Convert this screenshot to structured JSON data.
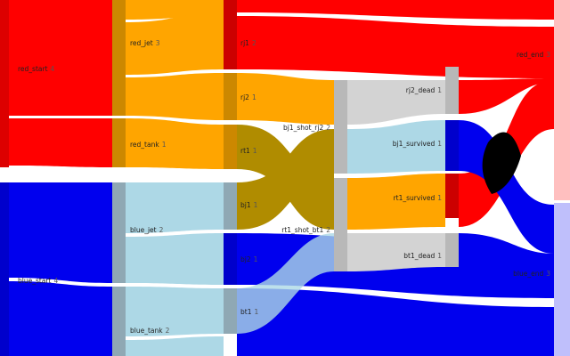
{
  "diagram": {
    "type": "sankey",
    "colors": {
      "red": "#ff0000",
      "blue": "#0000ee",
      "orange": "#ffa500",
      "lightblue": "#add8e6",
      "lightgray": "#d3d3d3",
      "darkgold": "#b08c00",
      "black": "#000000",
      "gray": "#bbbbbb"
    },
    "nodes": [
      {
        "id": "red_start",
        "label": "red_start",
        "value": "4"
      },
      {
        "id": "blue_start",
        "label": "blue_start",
        "value": "4"
      },
      {
        "id": "red_jet",
        "label": "red_jet",
        "value": "3"
      },
      {
        "id": "red_tank",
        "label": "red_tank",
        "value": "1"
      },
      {
        "id": "blue_jet",
        "label": "blue_jet",
        "value": "2"
      },
      {
        "id": "blue_tank",
        "label": "blue_tank",
        "value": "2"
      },
      {
        "id": "rj1",
        "label": "rj1",
        "value": "2"
      },
      {
        "id": "rj2",
        "label": "rj2",
        "value": "1"
      },
      {
        "id": "rt1",
        "label": "rt1",
        "value": "1"
      },
      {
        "id": "bj1",
        "label": "bj1",
        "value": "1"
      },
      {
        "id": "bj2",
        "label": "bj2",
        "value": "1"
      },
      {
        "id": "bt1",
        "label": "bt1",
        "value": "1"
      },
      {
        "id": "bj1_shot_rj2",
        "label": "bj1_shot_rj2",
        "value": "2"
      },
      {
        "id": "rt1_shot_bt1",
        "label": "rt1_shot_bt1",
        "value": "2"
      },
      {
        "id": "rj2_dead",
        "label": "rj2_dead",
        "value": "1"
      },
      {
        "id": "bj1_survived",
        "label": "bj1_survived",
        "value": "1"
      },
      {
        "id": "rt1_survived",
        "label": "rt1_survived",
        "value": "1"
      },
      {
        "id": "bt1_dead",
        "label": "bt1_dead",
        "value": "1"
      },
      {
        "id": "red_end",
        "label": "red_end",
        "value": "3"
      },
      {
        "id": "blue_end",
        "label": "blue_end",
        "value": "3"
      }
    ]
  }
}
